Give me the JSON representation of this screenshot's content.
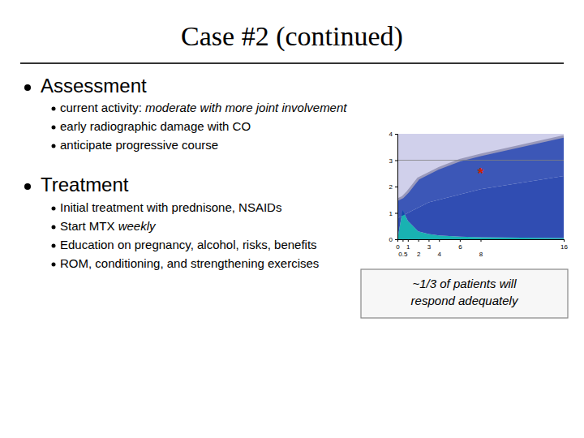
{
  "chart_data": {
    "type": "area",
    "title": "Case #2 (continued)",
    "x": [
      0,
      0.5,
      1,
      2,
      3,
      4,
      6,
      8,
      16
    ],
    "series": [
      {
        "values": [
          1.5,
          1.6,
          1.8,
          2.3,
          2.5,
          2.7,
          3.0,
          3.2,
          3.9
        ]
      },
      {
        "values": [
          0.8,
          0.9,
          1.0,
          1.2,
          1.4,
          1.5,
          1.7,
          1.9,
          2.4
        ]
      },
      {
        "values": [
          0.0,
          1.1,
          0.7,
          0.3,
          0.2,
          0.15,
          0.1,
          0.08,
          0.05
        ]
      }
    ],
    "colors": [
      "#c8c8e8",
      "#9999bb",
      "#1a3aaa",
      "#1a3aaa",
      "#00aaaa"
    ],
    "xlim": [
      0,
      16
    ],
    "ylim": [
      0,
      4
    ],
    "xticks": [
      0,
      0.5,
      1,
      2,
      3,
      4,
      6,
      8,
      16
    ],
    "yticks": [
      0,
      1,
      2,
      3,
      4
    ],
    "annotations": [
      {
        "text": "Assessment"
      },
      {
        "text": "current activity: "
      },
      {
        "text": "moderate with more joint involvement"
      },
      {
        "text": "early radiographic damage with CO"
      },
      {
        "text": "anticipate progressive course"
      },
      {
        "text": "Treatment"
      },
      {
        "text": "Initial treatment with prednisone, NSAIDs"
      },
      {
        "text": "Start MTX "
      },
      {
        "text": "weekly"
      },
      {
        "text": "Education on pregnancy, alcohol, risks, benefits"
      },
      {
        "text": "ROM, conditioning, and strengthening exercises"
      },
      {
        "text": "~1/3 of patients will\nrespond adequately"
      },
      {
        "text": "*",
        "x": 8,
        "y": 2.5,
        "color": "#cc2200"
      },
      {
        "y": 3,
        "color": "gray"
      }
    ]
  }
}
